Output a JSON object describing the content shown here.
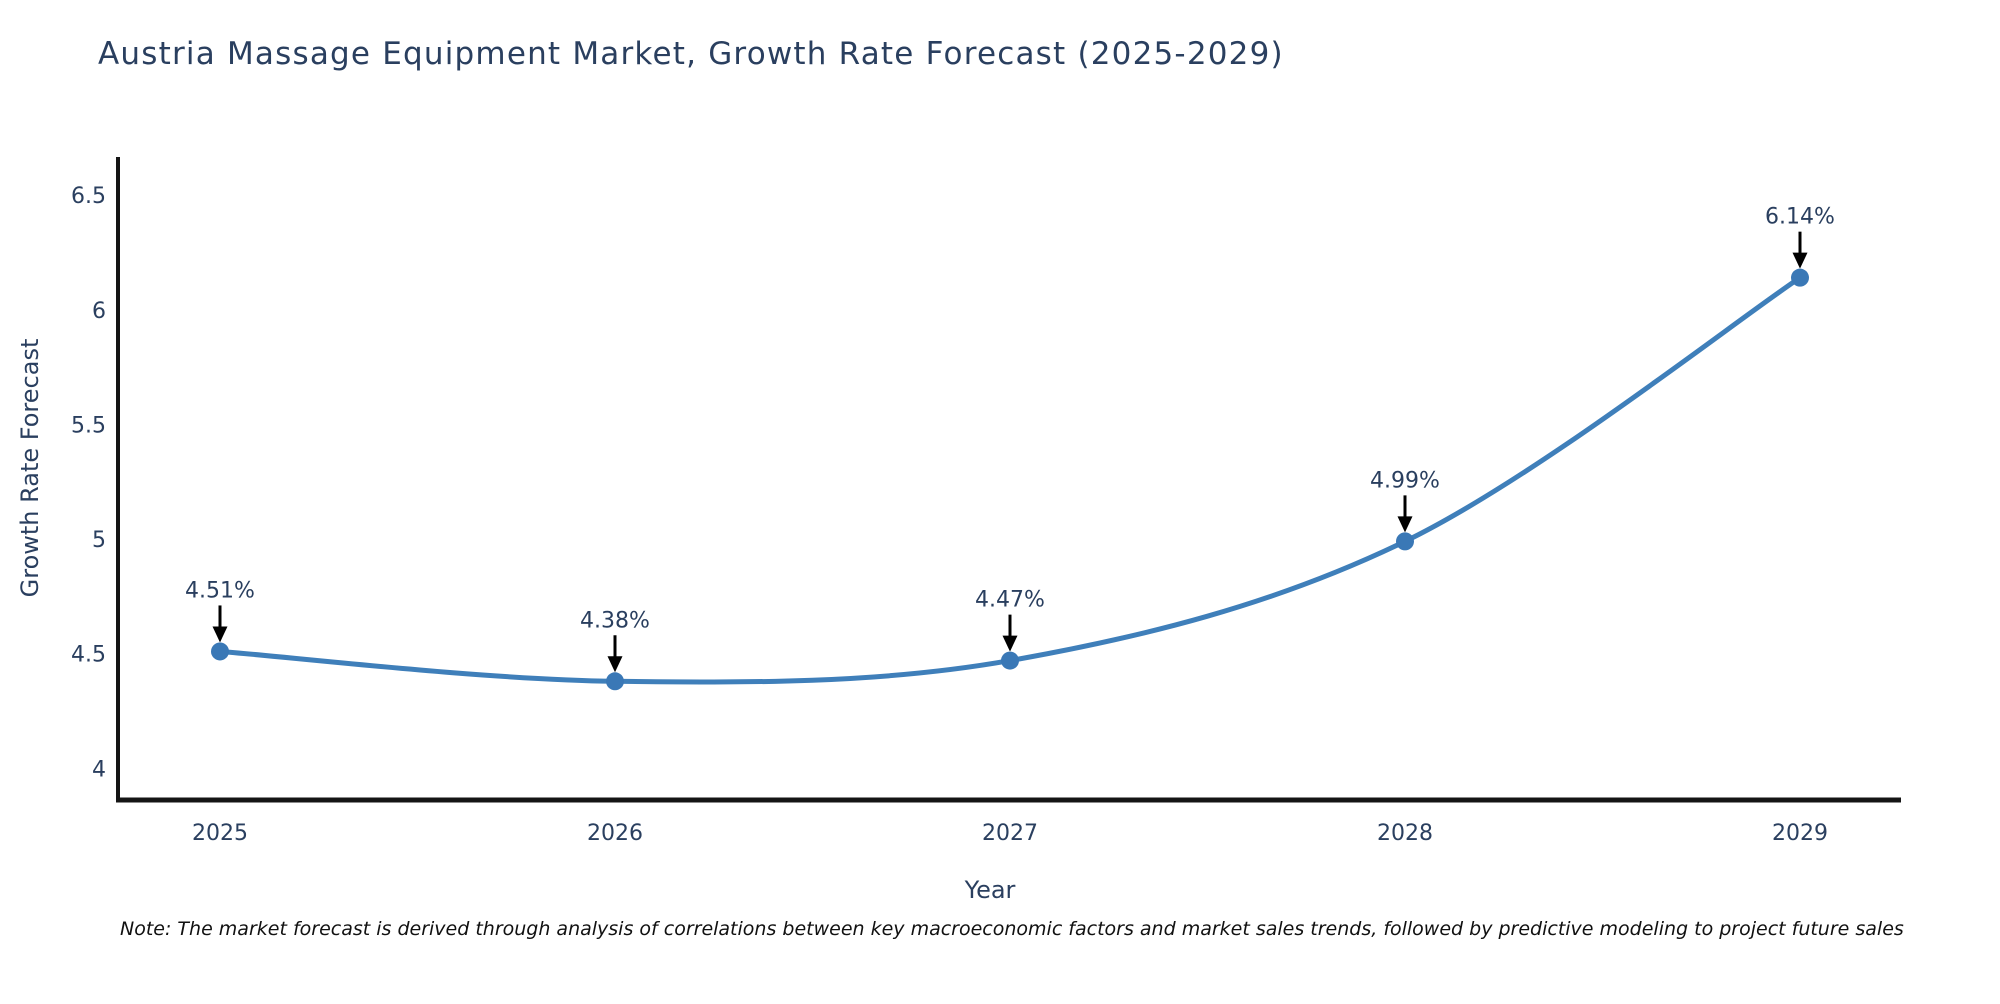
{
  "title": "Austria Massage Equipment Market, Growth Rate Forecast (2025-2029)",
  "note": "Note: The market forecast is derived through analysis of correlations between key macroeconomic factors and market sales trends, followed by predictive modeling to project future sales",
  "colors": {
    "background": "#ffffff",
    "title_text": "#2a3f5f",
    "axis_text": "#2a3f5f",
    "axis_line": "#151515",
    "line": "#3f7fba",
    "marker": "#3a78b6",
    "annotation_arrow": "#000000"
  },
  "chart_data": {
    "type": "line",
    "title": "Austria Massage Equipment Market, Growth Rate Forecast (2025-2029)",
    "xlabel": "Year",
    "ylabel": "Growth Rate Forecast",
    "x": [
      2025,
      2026,
      2027,
      2028,
      2029
    ],
    "values": [
      4.51,
      4.38,
      4.47,
      4.99,
      6.14
    ],
    "point_labels": [
      "4.51%",
      "4.38%",
      "4.47%",
      "4.99%",
      "6.14%"
    ],
    "yticks": [
      4,
      4.5,
      5,
      5.5,
      6,
      6.5
    ],
    "ylim": [
      3.86,
      6.66
    ],
    "grid": false,
    "legend": "none",
    "line_shape": "spline",
    "marker": "circle",
    "annotations": "value labels with downward arrows above each point"
  }
}
